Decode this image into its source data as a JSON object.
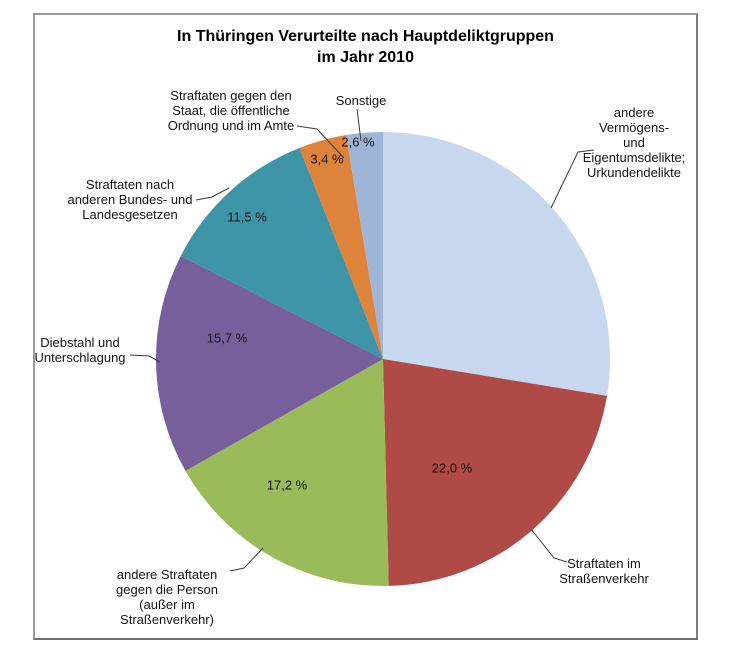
{
  "chart_data": {
    "type": "pie",
    "title": "In Thüringen Verurteilte nach Hauptdeliktgruppen\nim Jahr 2010",
    "unit": "%",
    "legend": "none",
    "start_angle_deg": -90,
    "direction": "clockwise",
    "slices": [
      {
        "label": "andere Vermögens- und Eigentumsdelikte; Urkundendelikte",
        "callout": "andere Vermögens-\nund Eigentumsdelikte;\nUrkundendelikte",
        "value": 27.6,
        "pct_label": "",
        "color": "#C7D8EE"
      },
      {
        "label": "Straftaten im Straßenverkehr",
        "callout": "Straftaten im\nStraßenverkehr",
        "value": 22.0,
        "pct_label": "22,0 %",
        "color": "#B04A47"
      },
      {
        "label": "andere Straftaten gegen die Person (außer im Straßenverkehr)",
        "callout": "andere Straftaten\ngegen die Person\n(außer im\nStraßenverkehr)",
        "value": 17.2,
        "pct_label": "17,2 %",
        "color": "#9ABB5A"
      },
      {
        "label": "Diebstahl und Unterschlagung",
        "callout": "Diebstahl und\nUnterschlagung",
        "value": 15.7,
        "pct_label": "15,7 %",
        "color": "#765F9A"
      },
      {
        "label": "Straftaten nach anderen Bundes- und Landesgesetzen",
        "callout": "Straftaten nach\nanderen Bundes- und\nLandesgesetzen",
        "value": 11.5,
        "pct_label": "11,5 %",
        "color": "#3E95A8"
      },
      {
        "label": "Straftaten gegen den Staat, die öffentliche Ordnung und im Amte",
        "callout": "Straftaten gegen den\nStaat, die öffentliche\nOrdnung und im Amte",
        "value": 3.4,
        "pct_label": "3,4 %",
        "color": "#DE833B"
      },
      {
        "label": "Sonstige",
        "callout": "Sonstige",
        "value": 2.6,
        "pct_label": "2,6 %",
        "color": "#9FB5D8"
      }
    ]
  }
}
